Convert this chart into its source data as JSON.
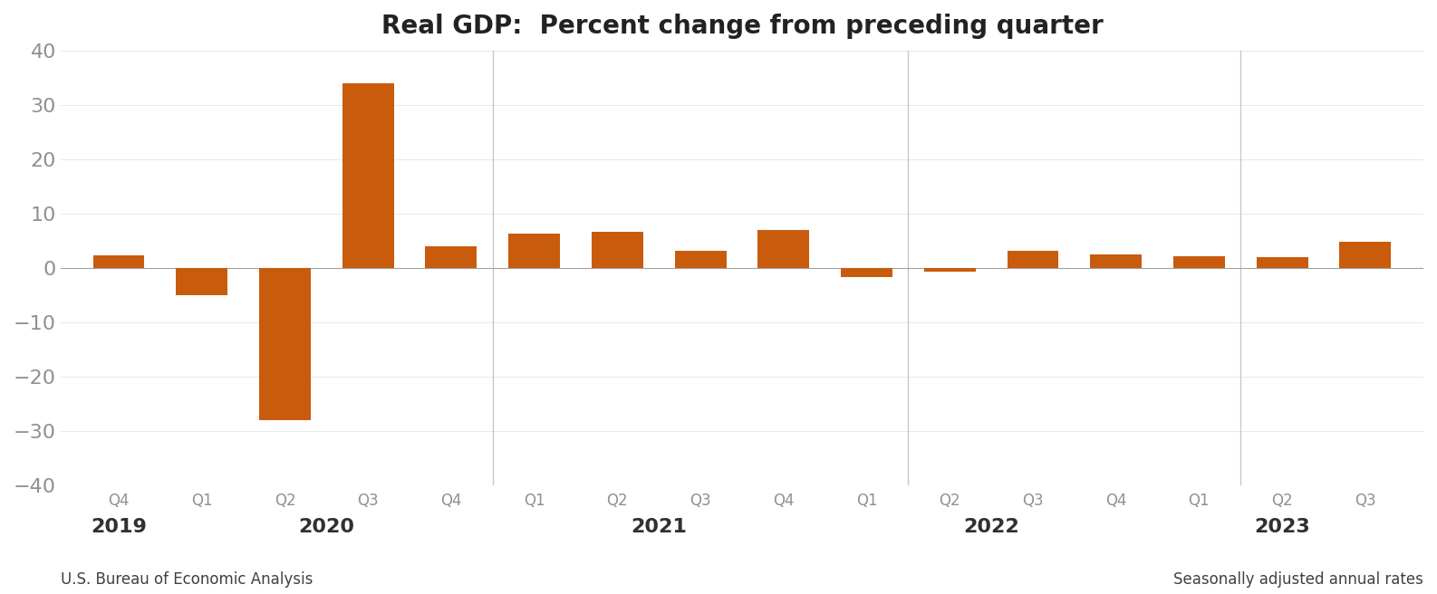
{
  "title": "Real GDP:  Percent change from preceding quarter",
  "bar_color": "#C95B0C",
  "background_color": "#ffffff",
  "quarters": [
    "Q4",
    "Q1",
    "Q2",
    "Q3",
    "Q4",
    "Q1",
    "Q2",
    "Q3",
    "Q4",
    "Q1",
    "Q2",
    "Q3",
    "Q4",
    "Q1",
    "Q2",
    "Q3"
  ],
  "years": [
    "2019",
    "2020",
    "2021",
    "2022",
    "2023"
  ],
  "values": [
    2.4,
    -5.0,
    -28.0,
    34.0,
    4.0,
    6.3,
    6.7,
    3.2,
    7.0,
    -1.6,
    -0.6,
    3.2,
    2.6,
    2.2,
    2.1,
    4.9
  ],
  "ylim": [
    -40,
    40
  ],
  "yticks": [
    -40,
    -30,
    -20,
    -10,
    0,
    10,
    20,
    30,
    40
  ],
  "vline_indices": [
    4.5,
    9.5,
    13.5
  ],
  "source_left": "U.S. Bureau of Economic Analysis",
  "source_right": "Seasonally adjusted annual rates",
  "title_fontsize": 20,
  "qtick_fontsize": 12,
  "ytick_fontsize": 16,
  "year_fontsize": 16,
  "source_fontsize": 12,
  "tick_label_color": "#909090",
  "year_label_color": "#303030",
  "vline_color": "#c8c8c8",
  "hline_color": "#a0a0a0",
  "grid_color": "#e8e8e8"
}
